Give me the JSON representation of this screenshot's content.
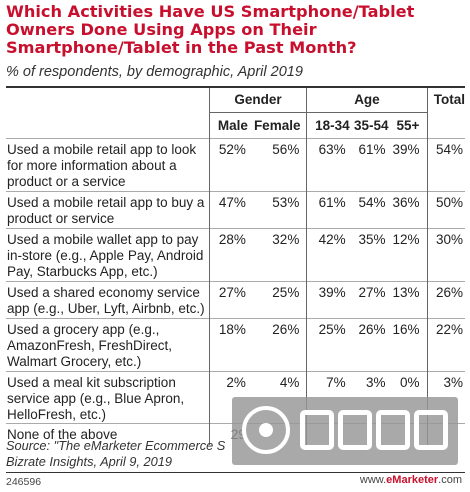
{
  "title": "Which Activities Have US Smartphone/Tablet Owners Done Using Apps on Their Smartphone/Tablet in the Past Month?",
  "subtitle": "% of respondents, by demographic, April 2019",
  "source": "Source: \"The eMarketer Ecommerce S... Bizrate Insights, April 9, 2019",
  "source_line1": "Source: \"The eMarketer Ecommerce S",
  "source_line2": "Bizrate Insights, April 9, 2019",
  "footer_id": "246596",
  "footer_brand": "www.eMarketer.com",
  "watermark": "白鲸出海",
  "colors": {
    "title": "#c8102e",
    "text": "#222222",
    "rule": "#333333"
  },
  "chart_data": {
    "type": "table",
    "title": "Which Activities Have US Smartphone/Tablet Owners Done Using Apps on Their Smartphone/Tablet in the Past Month?",
    "subtitle": "% of respondents, by demographic, April 2019",
    "column_groups": [
      {
        "label": "Gender",
        "columns": [
          "Male",
          "Female"
        ]
      },
      {
        "label": "Age",
        "columns": [
          "18-34",
          "35-54",
          "55+"
        ]
      },
      {
        "label": "Total",
        "columns": [
          ""
        ]
      }
    ],
    "columns": [
      "Male",
      "Female",
      "18-34",
      "35-54",
      "55+",
      "Total"
    ],
    "rows": [
      {
        "label": "Used a mobile retail app to look for more information about a product or a service",
        "values": [
          "52%",
          "56%",
          "63%",
          "61%",
          "39%",
          "54%"
        ]
      },
      {
        "label": "Used a mobile retail app to buy a product or service",
        "values": [
          "47%",
          "53%",
          "61%",
          "54%",
          "36%",
          "50%"
        ]
      },
      {
        "label": "Used a mobile wallet app to pay in-store (e.g., Apple Pay, Android Pay, Starbucks App, etc.)",
        "values": [
          "28%",
          "32%",
          "42%",
          "35%",
          "12%",
          "30%"
        ]
      },
      {
        "label": "Used a shared economy service app (e.g., Uber, Lyft, Airbnb, etc.)",
        "values": [
          "27%",
          "25%",
          "39%",
          "27%",
          "13%",
          "26%"
        ]
      },
      {
        "label": "Used a grocery app (e.g., AmazonFresh, FreshDirect, Walmart Grocery, etc.)",
        "values": [
          "18%",
          "26%",
          "25%",
          "26%",
          "16%",
          "22%"
        ]
      },
      {
        "label": "Used a meal kit subscription service app (e.g., Blue Apron, HelloFresh, etc.)",
        "values": [
          "2%",
          "4%",
          "7%",
          "3%",
          "0%",
          "3%"
        ]
      },
      {
        "label": "None of the above",
        "values": [
          "29",
          "",
          "",
          "",
          "",
          ""
        ]
      }
    ]
  }
}
